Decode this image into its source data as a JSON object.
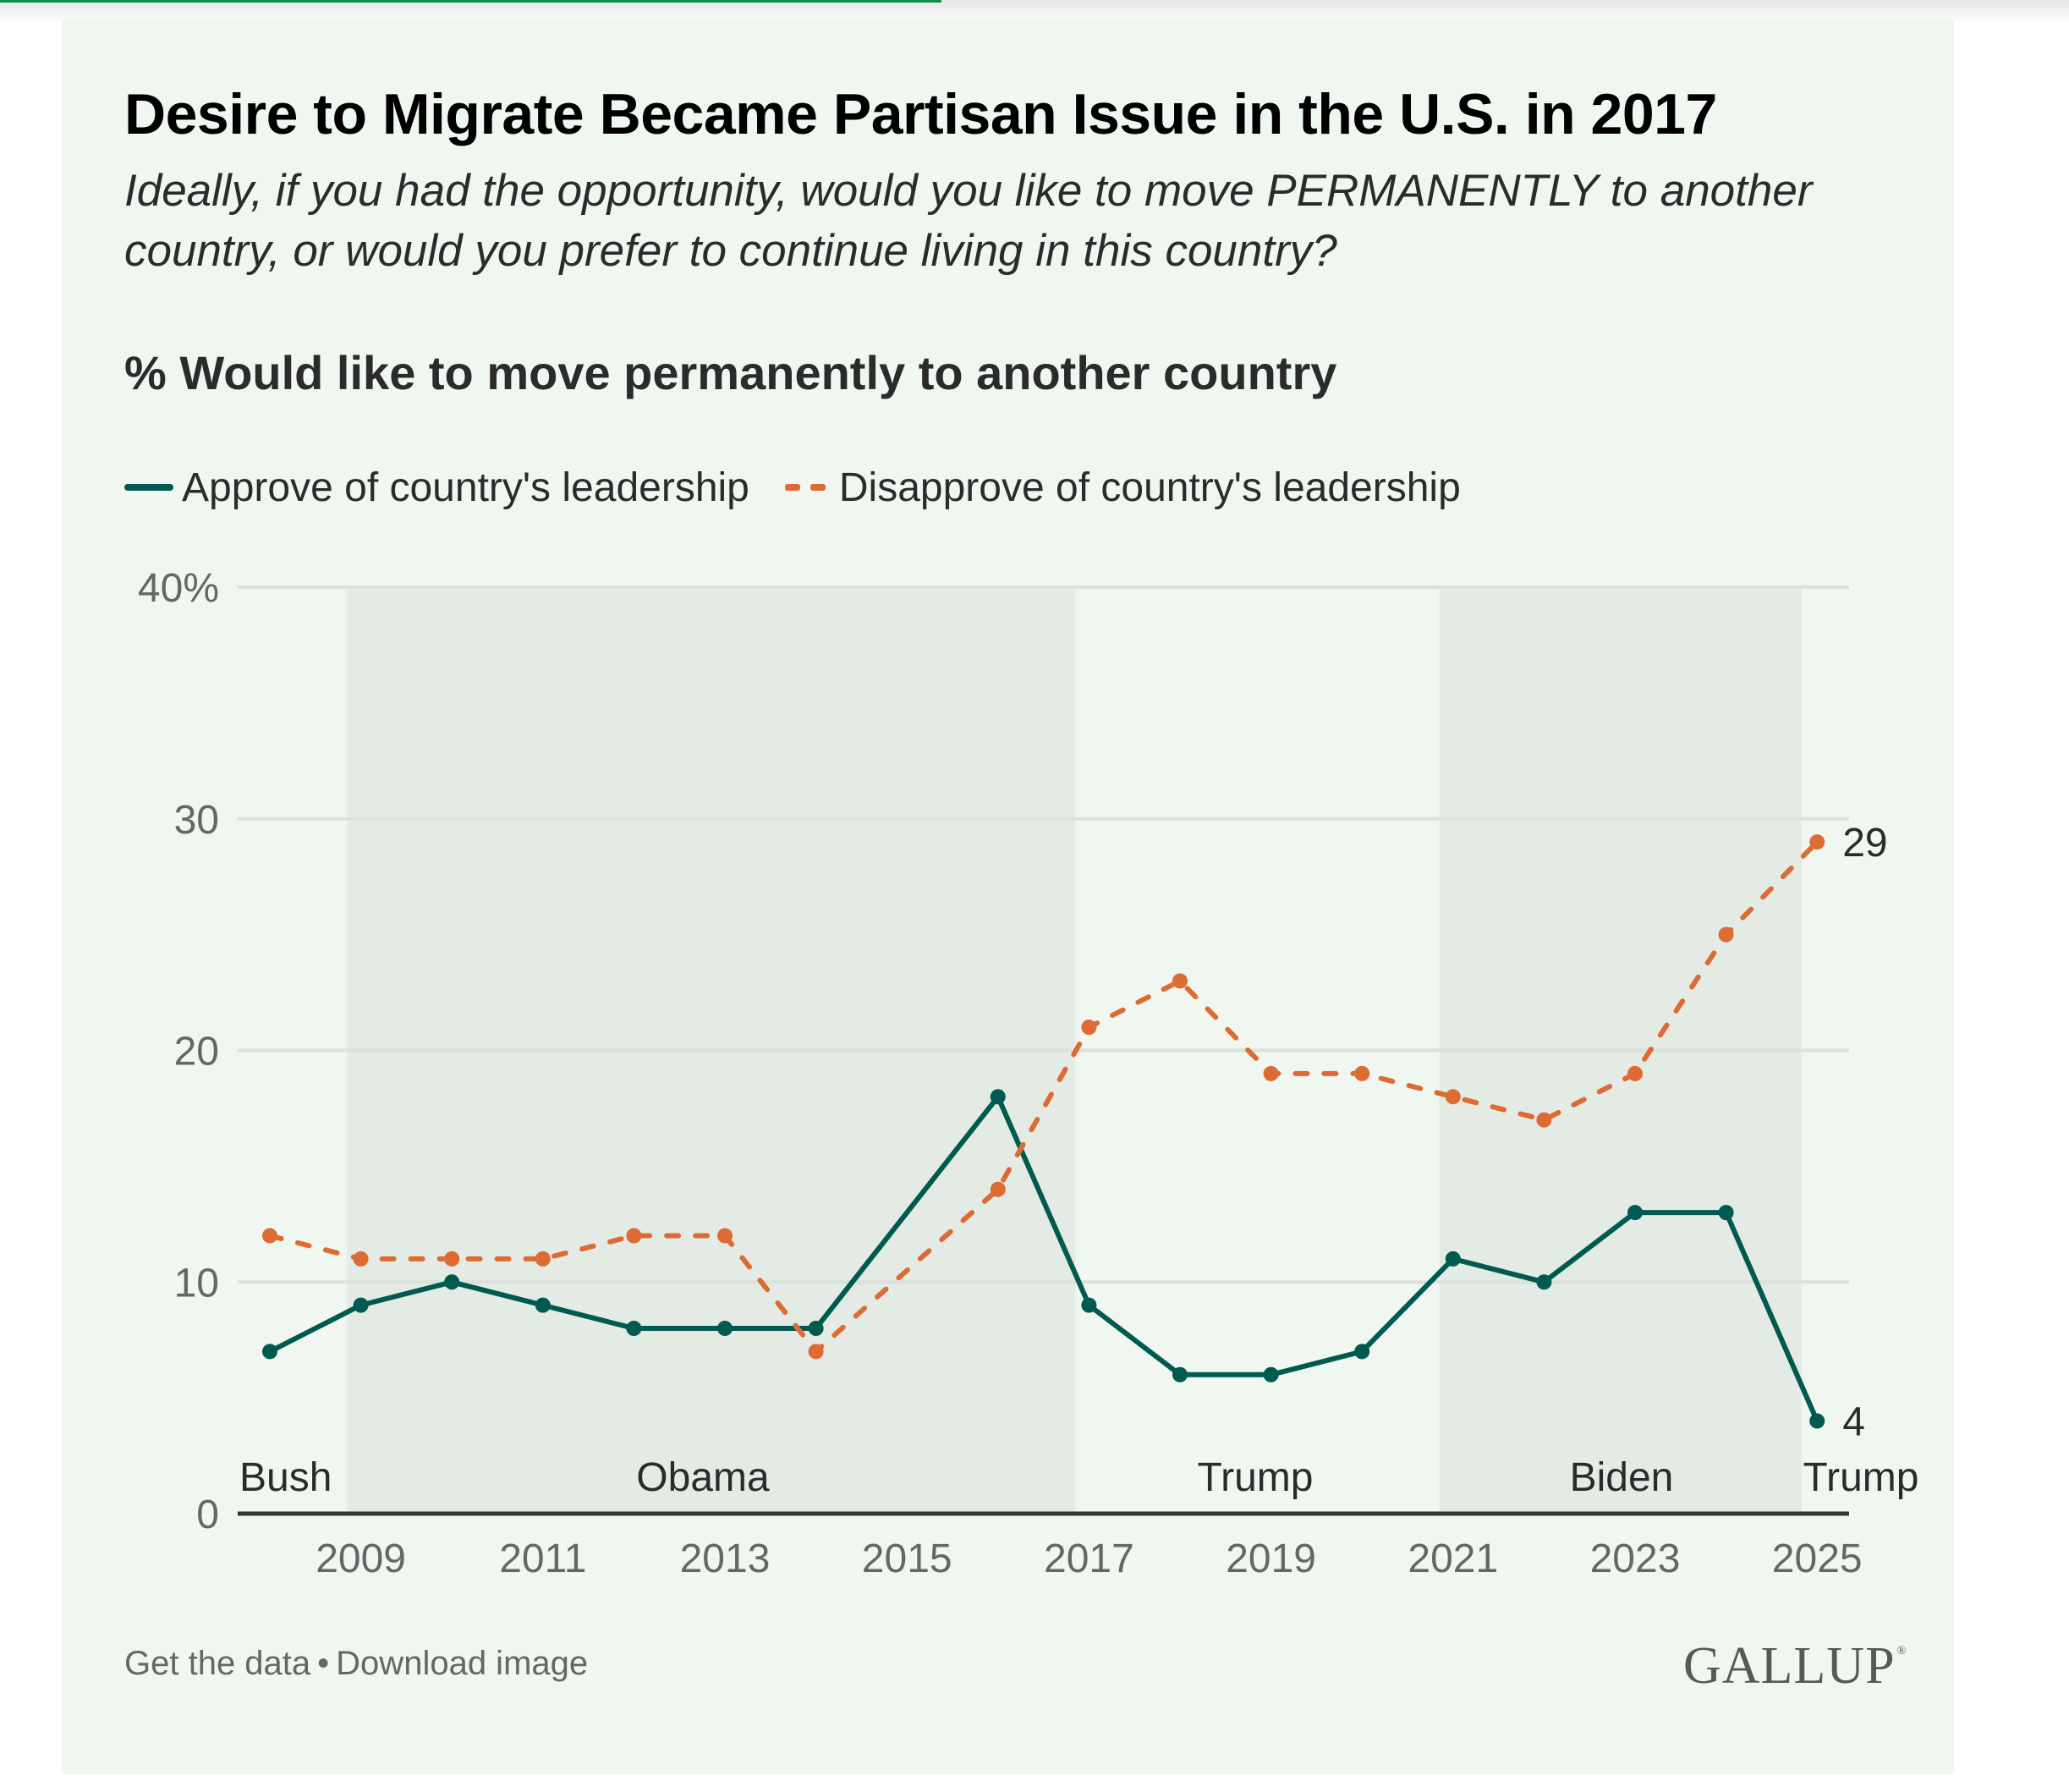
{
  "page": {
    "progress_percent": 45.5,
    "accent_color": "#0b8f4a"
  },
  "header": {
    "title": "Desire to Migrate Became Partisan Issue in the U.S. in 2017",
    "subtitle": "Ideally, if you had the opportunity, would you like to move PERMANENTLY to another country, or would you prefer to continue living in this country?",
    "section_heading": "% Would like to move permanently to another country"
  },
  "legend": [
    {
      "label": "Approve of country's leadership",
      "style": "solid",
      "color": "#005a50"
    },
    {
      "label": "Disapprove of country's leadership",
      "style": "dashed",
      "color": "#dd6b33"
    }
  ],
  "chart_data": {
    "type": "line",
    "title": "Desire to Migrate Became Partisan Issue in the U.S. in 2017",
    "subtitle": "Ideally, if you had the opportunity, would you like to move PERMANENTLY to another country, or would you prefer to continue living in this country?",
    "ylabel": "% Would like to move permanently to another country",
    "xlabel": "",
    "x": [
      2008,
      2009,
      2010,
      2011,
      2012,
      2013,
      2014,
      2015,
      2016,
      2017,
      2018,
      2019,
      2020,
      2021,
      2022,
      2023,
      2024,
      2025
    ],
    "series": [
      {
        "name": "Approve of country's leadership",
        "color": "#005a50",
        "style": "solid",
        "values": [
          7,
          9,
          10,
          9,
          8,
          8,
          8,
          null,
          18,
          9,
          6,
          6,
          7,
          11,
          10,
          13,
          13,
          4
        ],
        "end_label": "4"
      },
      {
        "name": "Disapprove of country's leadership",
        "color": "#dd6b33",
        "style": "dashed",
        "values": [
          12,
          11,
          11,
          11,
          12,
          12,
          7,
          null,
          14,
          21,
          23,
          19,
          19,
          18,
          17,
          19,
          25,
          29
        ],
        "end_label": "29"
      }
    ],
    "ylim": [
      0,
      40
    ],
    "yticks": [
      0,
      10,
      20,
      30,
      40
    ],
    "ytick_labels": [
      "0",
      "10",
      "20",
      "30",
      "40%"
    ],
    "xlim": [
      2008,
      2025
    ],
    "xticks": [
      2009,
      2011,
      2013,
      2015,
      2017,
      2019,
      2021,
      2023,
      2025
    ],
    "xtick_labels": [
      "2009",
      "2011",
      "2013",
      "2015",
      "2017",
      "2019",
      "2021",
      "2023",
      "2025"
    ],
    "grid": true,
    "legend_position": "top-left",
    "shaded_periods": [
      {
        "label": "Bush",
        "start": 2007.5,
        "end": 2008.85,
        "shaded": false
      },
      {
        "label": "Obama",
        "start": 2008.85,
        "end": 2016.85,
        "shaded": true
      },
      {
        "label": "Trump",
        "start": 2016.85,
        "end": 2020.85,
        "shaded": false
      },
      {
        "label": "Biden",
        "start": 2020.85,
        "end": 2024.83,
        "shaded": true
      },
      {
        "label": "Trump",
        "start": 2024.83,
        "end": 2025.35,
        "shaded": false
      }
    ],
    "colors": {
      "shade": "#e3ebe4",
      "grid": "#d9e2db",
      "axis": "#333333"
    }
  },
  "footer": {
    "get_data": "Get the data",
    "separator": "•",
    "download": "Download image",
    "logo": "GALLUP",
    "logo_mark": "®"
  }
}
